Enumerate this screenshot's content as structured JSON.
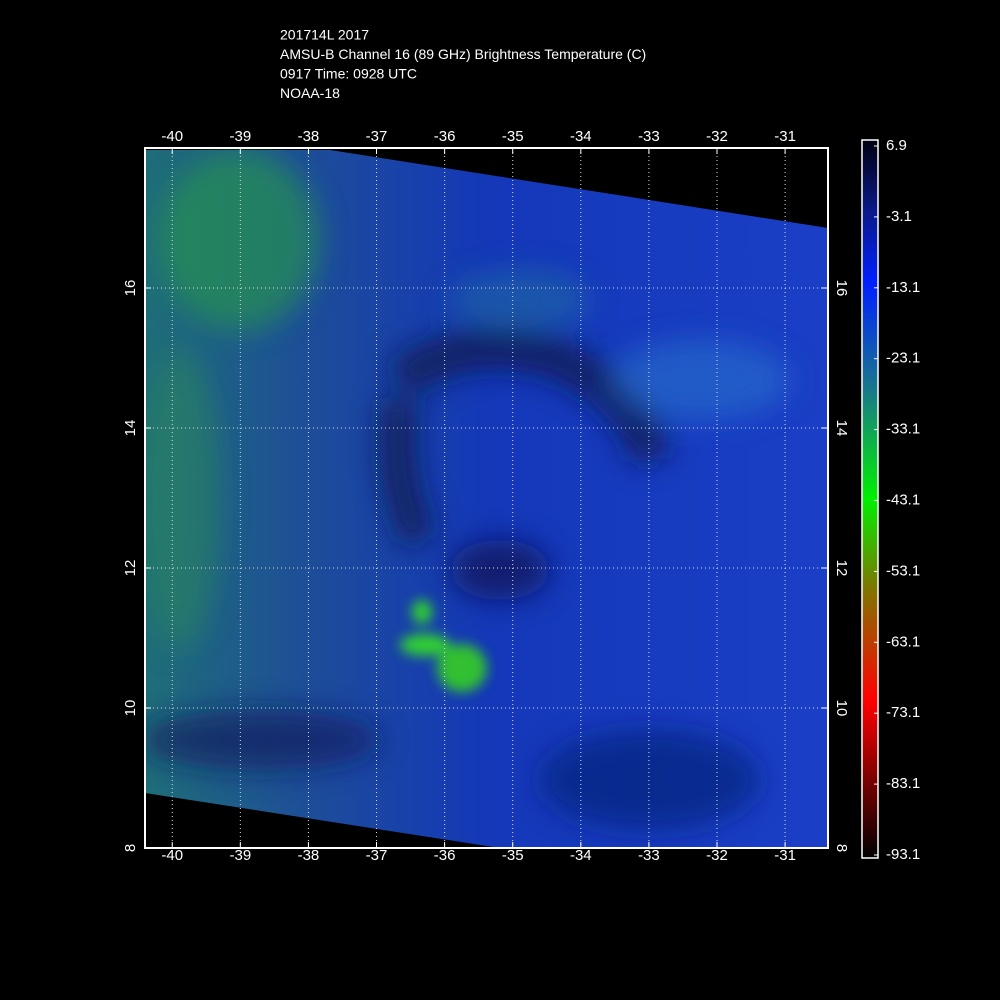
{
  "header": {
    "lines": [
      "201714L 2017",
      "AMSU-B Channel 16 (89 GHz) Brightness Temperature (C)",
      "0917 Time: 0928 UTC",
      "NOAA-18"
    ]
  },
  "map": {
    "xlim": [
      -40.4,
      -30.37
    ],
    "ylim": [
      8,
      18
    ],
    "xticks": [
      -40,
      -39,
      -38,
      -37,
      -36,
      -35,
      -34,
      -33,
      -32,
      -31
    ],
    "yticks": [
      8,
      10,
      12,
      14,
      16
    ],
    "grid": true
  },
  "colorbar": {
    "lim": [
      6.9,
      -93.1
    ],
    "ticks": [
      6.9,
      -3.1,
      -13.1,
      -23.1,
      -33.1,
      -43.1,
      -53.1,
      -63.1,
      -73.1,
      -83.1,
      -93.1
    ]
  }
}
